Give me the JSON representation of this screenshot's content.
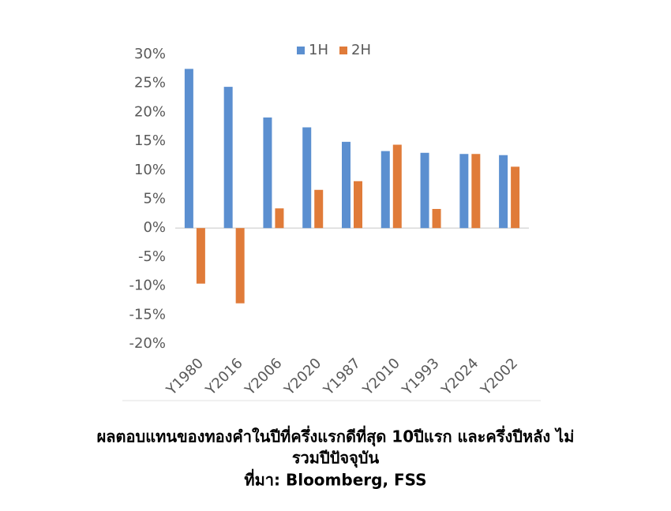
{
  "chart_data": {
    "type": "bar",
    "categories": [
      "Y1980",
      "Y2016",
      "Y2006",
      "Y2020",
      "Y1987",
      "Y2010",
      "Y1993",
      "Y2024",
      "Y2002"
    ],
    "series": [
      {
        "name": "1H",
        "color": "#5b8fd0",
        "values": [
          27.5,
          24.4,
          19.1,
          17.4,
          14.9,
          13.3,
          13.0,
          12.8,
          12.6
        ]
      },
      {
        "name": "2H",
        "color": "#e07b39",
        "values": [
          -9.6,
          -13.0,
          3.4,
          6.6,
          8.1,
          14.4,
          3.3,
          12.8,
          10.6
        ]
      }
    ],
    "ylim": [
      -20,
      30
    ],
    "yticks": [
      {
        "value": -20,
        "label": "-20%"
      },
      {
        "value": -15,
        "label": "-15%"
      },
      {
        "value": -10,
        "label": "-10%"
      },
      {
        "value": -5,
        "label": "-5%"
      },
      {
        "value": 0,
        "label": "0%"
      },
      {
        "value": 5,
        "label": "5%"
      },
      {
        "value": 10,
        "label": "10%"
      },
      {
        "value": 15,
        "label": "15%"
      },
      {
        "value": 20,
        "label": "20%"
      },
      {
        "value": 25,
        "label": "25%"
      },
      {
        "value": 30,
        "label": "30%"
      }
    ],
    "grid": false,
    "legend": "top",
    "caption": [
      "ผลตอบแทนของทองคำในปีที่ครึ่งแรกดีที่สุด 10ปีแรก และครึ่งปีหลัง ไม่",
      "รวมปีปัจจุบัน",
      "ที่มา: Bloomberg, FSS"
    ]
  }
}
